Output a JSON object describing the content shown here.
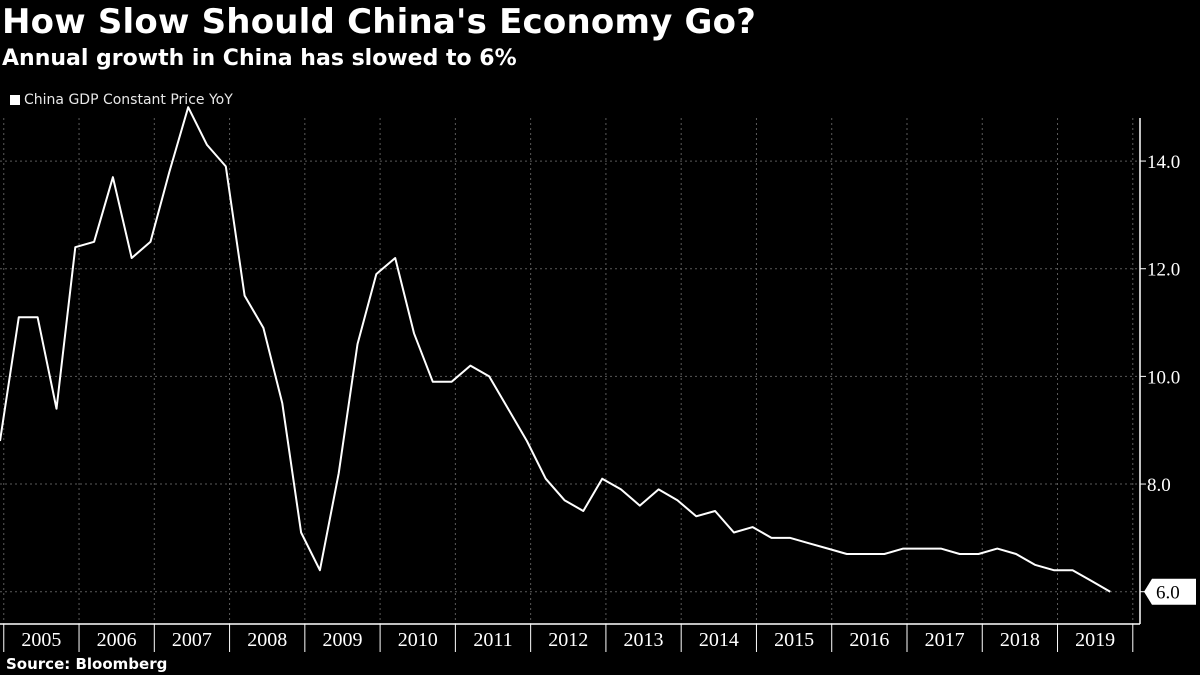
{
  "title": "How Slow Should China's Economy Go?",
  "subtitle": "Annual growth in China has slowed to 6%",
  "legend": {
    "label": "China GDP Constant Price YoY"
  },
  "source": "Source: Bloomberg",
  "colors": {
    "background": "#000000",
    "line": "#ffffff",
    "grid": "#5a5a5a"
  },
  "chart_data": {
    "type": "line",
    "title": "How Slow Should China's Economy Go?",
    "subtitle": "Annual growth in China has slowed to 6%",
    "xlabel": "",
    "ylabel": "",
    "ylim": [
      5.4,
      14.8
    ],
    "yticks": [
      6.0,
      8.0,
      10.0,
      12.0,
      14.0
    ],
    "ytick_labels": [
      "6.0",
      "8.0",
      "10.0",
      "12.0",
      "14.0"
    ],
    "xlim": [
      2004.95,
      2019.83
    ],
    "year_labels": [
      "2005",
      "2006",
      "2007",
      "2008",
      "2009",
      "2010",
      "2011",
      "2012",
      "2013",
      "2014",
      "2015",
      "2016",
      "2017",
      "2018",
      "2019"
    ],
    "grid": true,
    "legend_position": "top-left",
    "last_value_label": "6.0",
    "series": [
      {
        "name": "China GDP Constant Price YoY",
        "x": [
          2004.95,
          2005.2,
          2005.45,
          2005.7,
          2005.95,
          2006.2,
          2006.45,
          2006.7,
          2006.95,
          2007.2,
          2007.45,
          2007.7,
          2007.95,
          2008.2,
          2008.45,
          2008.7,
          2008.95,
          2009.2,
          2009.45,
          2009.7,
          2009.95,
          2010.2,
          2010.45,
          2010.7,
          2010.95,
          2011.2,
          2011.45,
          2011.7,
          2011.95,
          2012.2,
          2012.45,
          2012.7,
          2012.95,
          2013.2,
          2013.45,
          2013.7,
          2013.95,
          2014.2,
          2014.45,
          2014.7,
          2014.95,
          2015.2,
          2015.45,
          2015.7,
          2015.95,
          2016.2,
          2016.45,
          2016.7,
          2016.95,
          2017.2,
          2017.45,
          2017.7,
          2017.95,
          2018.2,
          2018.45,
          2018.7,
          2018.95,
          2019.2,
          2019.45,
          2019.7
        ],
        "values": [
          8.8,
          11.1,
          11.1,
          9.4,
          12.4,
          12.5,
          13.7,
          12.2,
          12.5,
          13.8,
          15.0,
          14.3,
          13.9,
          11.5,
          10.9,
          9.5,
          7.1,
          6.4,
          8.2,
          10.6,
          11.9,
          12.2,
          10.8,
          9.9,
          9.9,
          10.2,
          10.0,
          9.4,
          8.8,
          8.1,
          7.7,
          7.5,
          8.1,
          7.9,
          7.6,
          7.9,
          7.7,
          7.4,
          7.5,
          7.1,
          7.2,
          7.0,
          7.0,
          6.9,
          6.8,
          6.7,
          6.7,
          6.7,
          6.8,
          6.8,
          6.8,
          6.7,
          6.7,
          6.8,
          6.7,
          6.5,
          6.4,
          6.4,
          6.2,
          6.0
        ]
      }
    ]
  }
}
